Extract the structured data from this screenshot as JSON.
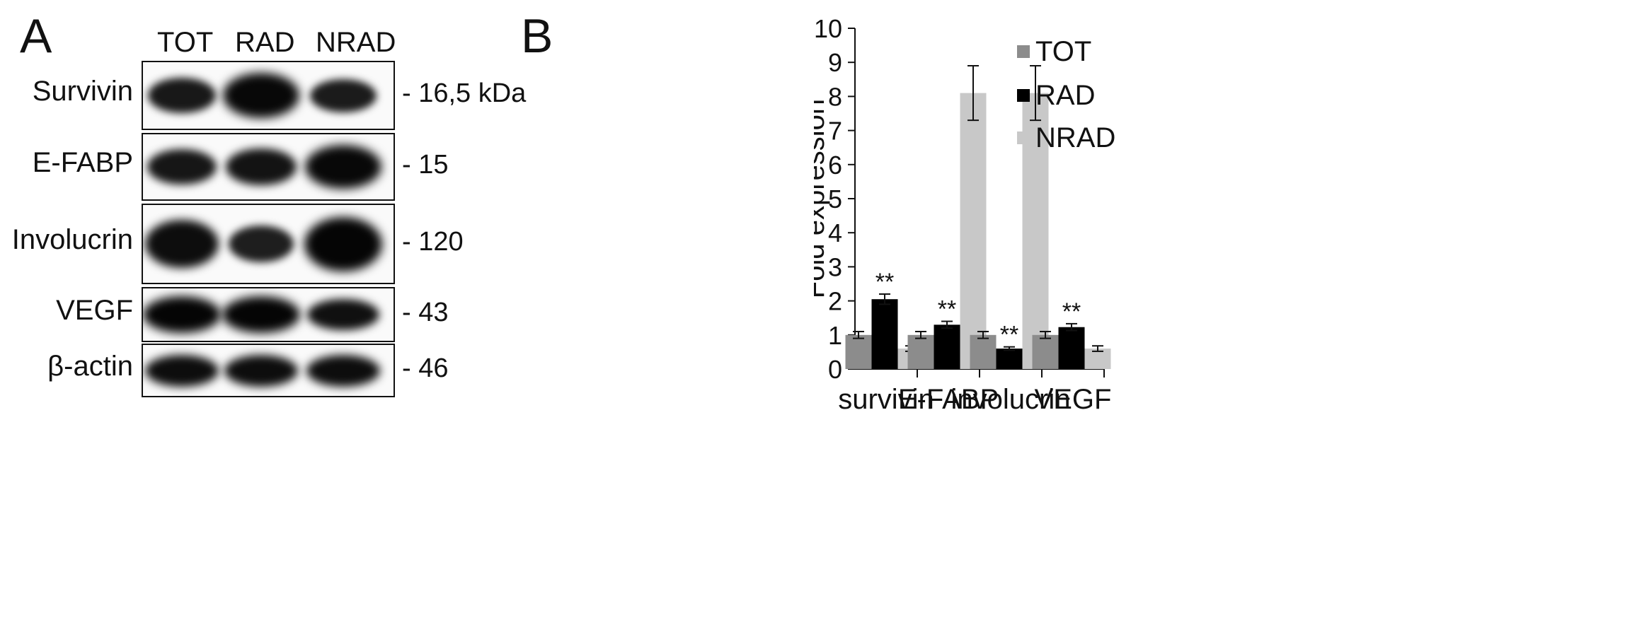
{
  "panel_a": {
    "label": "A",
    "lanes": [
      "TOT",
      "RAD",
      "NRAD"
    ],
    "blots": [
      {
        "name": "Survivin",
        "mw": "- 16,5 kDa",
        "intensity": [
          0.65,
          0.95,
          0.6
        ]
      },
      {
        "name": "E-FABP",
        "mw": "- 15",
        "intensity": [
          0.7,
          0.75,
          0.95
        ]
      },
      {
        "name": "Involucrin",
        "mw": "- 120",
        "intensity": [
          0.85,
          0.55,
          1.0
        ]
      },
      {
        "name": "VEGF",
        "mw": "- 43",
        "intensity": [
          1.0,
          1.0,
          0.8
        ]
      },
      {
        "name": "β-actin",
        "mw": "- 46",
        "intensity": [
          0.85,
          0.85,
          0.85
        ]
      }
    ]
  },
  "panel_b": {
    "label": "B",
    "legend": [
      "TOT",
      "RAD",
      "NRAD"
    ],
    "colors": [
      "#8c8c8c",
      "#000000",
      "#c8c8c8"
    ]
  },
  "chart_data": {
    "type": "bar",
    "categories": [
      "survivin",
      "E-FABP",
      "involucrin",
      "VEGF"
    ],
    "series": [
      {
        "name": "TOT",
        "values": [
          1.0,
          1.0,
          1.0,
          1.0
        ],
        "errors": [
          0.1,
          0.1,
          0.1,
          0.1
        ]
      },
      {
        "name": "RAD",
        "values": [
          2.05,
          1.3,
          0.6,
          1.23
        ],
        "errors": [
          0.15,
          0.1,
          0.05,
          0.1
        ]
      },
      {
        "name": "NRAD",
        "values": [
          0.6,
          8.1,
          8.1,
          0.6
        ],
        "errors": [
          0.08,
          0.8,
          0.8,
          0.08
        ]
      }
    ],
    "annotations": [
      {
        "category": "survivin",
        "series": "RAD",
        "text": "**"
      },
      {
        "category": "E-FABP",
        "series": "RAD",
        "text": "**"
      },
      {
        "category": "involucrin",
        "series": "RAD",
        "text": "**"
      },
      {
        "category": "VEGF",
        "series": "RAD",
        "text": "**"
      }
    ],
    "ylabel": "Fold expression",
    "xlabel": "",
    "ylim": [
      0,
      10
    ],
    "yticks": [
      "0",
      "1",
      "2",
      "3",
      "4",
      "5",
      "6",
      "7",
      "8",
      "9",
      "10"
    ],
    "legend_position": "top-right",
    "grid": false
  }
}
